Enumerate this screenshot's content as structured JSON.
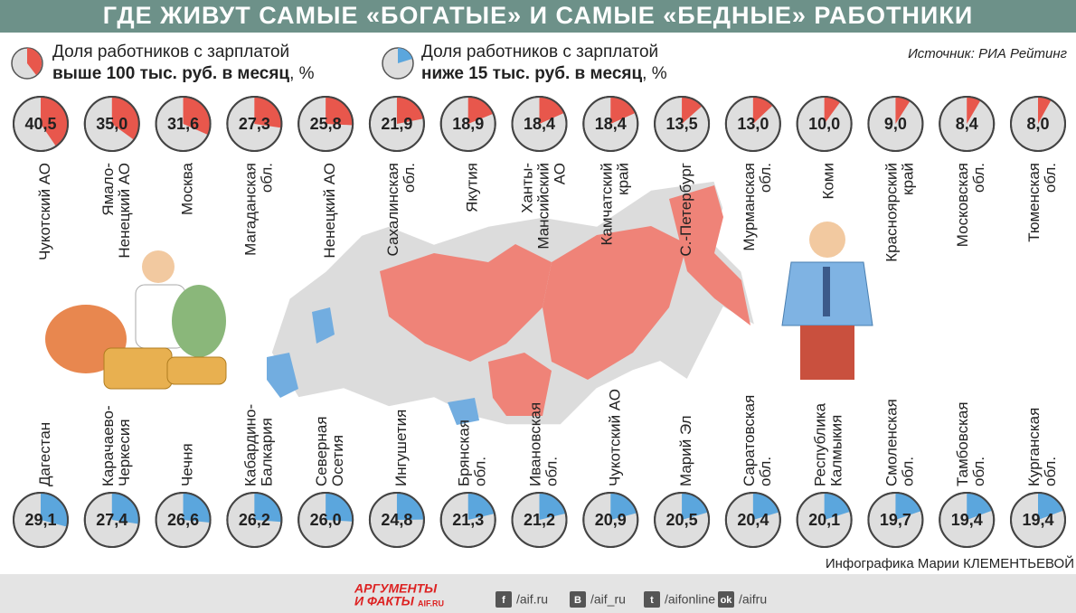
{
  "title": "ГДЕ ЖИВУТ САМЫЕ «БОГАТЫЕ» И САМЫЕ «БЕДНЫЕ» РАБОТНИКИ",
  "source": "Источник: РИА Рейтинг",
  "credit": "Инфографика Марии КЛЕМЕНТЬЕВОЙ",
  "footer": {
    "logo": [
      "АРГУМЕНТЫ",
      "И ФАКТЫ"
    ],
    "logo_sub": "AIF.RU",
    "links": [
      {
        "icon": "f",
        "text": "/aif.ru"
      },
      {
        "icon": "В",
        "text": "/aif_ru"
      },
      {
        "icon": "t",
        "text": "/aifonline"
      },
      {
        "icon": "ok",
        "text": "/aifru"
      }
    ]
  },
  "chart_data": [
    {
      "type": "pie",
      "color": "#e8574c",
      "legend": [
        "Доля работников с зарплатой",
        "выше 100 тыс. руб. в месяц",
        ", %"
      ],
      "categories": [
        [
          "Чукотский АО"
        ],
        [
          "Ямало-",
          "Ненецкий АО"
        ],
        [
          "Москва"
        ],
        [
          "Магаданская",
          "обл."
        ],
        [
          "Ненецкий АО"
        ],
        [
          "Сахалинская",
          "обл."
        ],
        [
          "Якутия"
        ],
        [
          "Ханты-",
          "Мансийский",
          "АО"
        ],
        [
          "Камчатский",
          "край"
        ],
        [
          "С.-Петербург"
        ],
        [
          "Мурманская",
          "обл."
        ],
        [
          "Коми"
        ],
        [
          "Красноярский",
          "край"
        ],
        [
          "Московская",
          "обл."
        ],
        [
          "Тюменская",
          "обл."
        ]
      ],
      "values": [
        40.5,
        35.0,
        31.6,
        27.3,
        25.8,
        21.9,
        18.9,
        18.4,
        18.4,
        13.5,
        13.0,
        10.0,
        9.0,
        8.4,
        8.0
      ],
      "value_labels": [
        "40,5",
        "35,0",
        "31,6",
        "27,3",
        "25,8",
        "21,9",
        "18,9",
        "18,4",
        "18,4",
        "13,5",
        "13,0",
        "10,0",
        "9,0",
        "8,4",
        "8,0"
      ]
    },
    {
      "type": "pie",
      "color": "#5ba6dd",
      "legend": [
        "Доля работников с зарплатой",
        "ниже 15 тыс. руб. в месяц",
        ", %"
      ],
      "categories": [
        [
          "Дагестан"
        ],
        [
          "Карачаево-",
          "Черкесия"
        ],
        [
          "Чечня"
        ],
        [
          "Кабардино-",
          "Балкария"
        ],
        [
          "Северная",
          "Осетия"
        ],
        [
          "Ингушетия"
        ],
        [
          "Брянская",
          "обл."
        ],
        [
          "Ивановская",
          "обл."
        ],
        [
          "Чукотский АО"
        ],
        [
          "Марий Эл"
        ],
        [
          "Саратовская",
          "обл."
        ],
        [
          "Республика",
          "Калмыкия"
        ],
        [
          "Смоленская",
          "обл."
        ],
        [
          "Тамбовская",
          "обл."
        ],
        [
          "Курганская",
          "обл."
        ]
      ],
      "values": [
        29.1,
        27.4,
        26.6,
        26.2,
        26.0,
        24.8,
        21.3,
        21.2,
        20.9,
        20.5,
        20.4,
        20.1,
        19.7,
        19.4,
        19.4
      ],
      "value_labels": [
        "29,1",
        "27,4",
        "26,6",
        "26,2",
        "26,0",
        "24,8",
        "21,3",
        "21,2",
        "20,9",
        "20,5",
        "20,4",
        "20,1",
        "19,7",
        "19,4",
        "19,4"
      ]
    }
  ]
}
